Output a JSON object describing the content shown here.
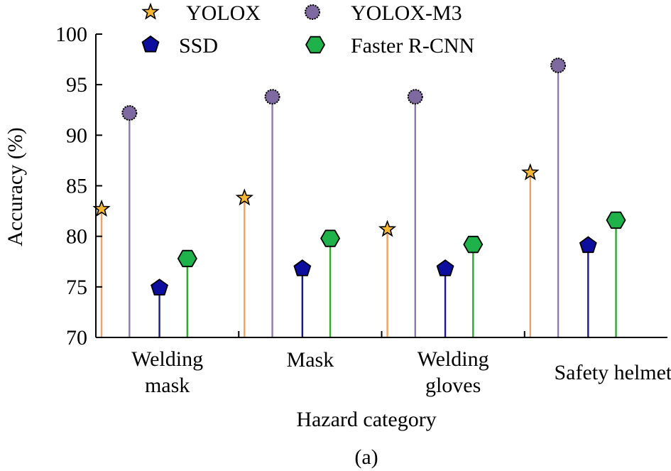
{
  "chart_data": {
    "type": "lollipop",
    "xlabel": "Hazard category",
    "ylabel": "Accuracy (%)",
    "caption": "(a)",
    "ylim": [
      70,
      100
    ],
    "yticks": [
      "70",
      "75",
      "80",
      "85",
      "90",
      "95",
      "100"
    ],
    "categories": [
      [
        "Welding",
        "mask"
      ],
      [
        "Mask"
      ],
      [
        "Welding",
        "gloves"
      ],
      [
        "Safety helmet"
      ]
    ],
    "series": [
      {
        "name": "YOLOX",
        "marker": "star",
        "line_color": "#f2a15f",
        "fill_color": "#f7b733",
        "values": [
          82.7,
          83.8,
          80.7,
          86.3
        ]
      },
      {
        "name": "YOLOX-M3",
        "marker": "circle",
        "line_color": "#8e79b1",
        "fill_color": "#7e6aa0",
        "values": [
          92.2,
          93.8,
          93.8,
          96.9
        ]
      },
      {
        "name": "SSD",
        "marker": "pentagon",
        "line_color": "#1a1a8c",
        "fill_color": "#0d0d9e",
        "values": [
          74.9,
          76.8,
          76.8,
          79.1
        ]
      },
      {
        "name": "Faster R-CNN",
        "marker": "hexagon",
        "line_color": "#2ea82e",
        "fill_color": "#1fb24a",
        "values": [
          77.8,
          79.8,
          79.2,
          81.6
        ]
      }
    ],
    "legend_position": "top",
    "grid": false
  }
}
